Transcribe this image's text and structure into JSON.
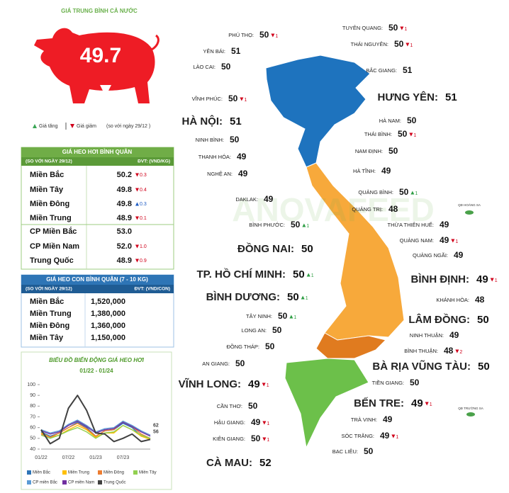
{
  "national": {
    "title": "GIÁ TRUNG BÌNH CẢ NƯỚC",
    "price": 49.7,
    "trend": "down",
    "legend": {
      "up": "Giá tăng",
      "down": "Giá giảm",
      "note": "(so với ngày 29/12 )"
    }
  },
  "live_hog_table": {
    "title": "GIÁ HEO HƠI BÌNH QUÂN",
    "subtitle": "(SO VỚI NGÀY 29/12)",
    "unit": "ĐVT: (VND/KG)",
    "rows": [
      {
        "region": "Miền Bắc",
        "price": "50.2",
        "change": "0.3",
        "trend": "down"
      },
      {
        "region": "Miền Tây",
        "price": "49.8",
        "change": "0.4",
        "trend": "down"
      },
      {
        "region": "Miền Đông",
        "price": "49.8",
        "change": "0.3",
        "trend": "up"
      },
      {
        "region": "Miền Trung",
        "price": "48.9",
        "change": "0.1",
        "trend": "down"
      },
      {
        "region": "CP Miền Bắc",
        "price": "53.0"
      },
      {
        "region": "CP Miền Nam",
        "price": "52.0",
        "change": "1.0",
        "trend": "down"
      },
      {
        "region": "Trung Quốc",
        "price": "48.9",
        "change": "0.9",
        "trend": "down"
      }
    ]
  },
  "piglet_table": {
    "title": "GIÁ HEO CON BÌNH QUÂN (7 - 10 KG)",
    "subtitle": "(SO VỚI NGÀY 29/12)",
    "unit": "ĐVT: (VND/CON)",
    "rows": [
      {
        "region": "Miền Bắc",
        "price": "1,520,000"
      },
      {
        "region": "Miền Trung",
        "price": "1,380,000"
      },
      {
        "region": "Miền Đông",
        "price": "1,360,000"
      },
      {
        "region": "Miền Tây",
        "price": "1,150,000"
      }
    ]
  },
  "chart_data": {
    "type": "line",
    "title": "BIỂU ĐỒ BIẾN ĐỘNG GIÁ HEO HƠI",
    "subtitle": "01/22 - 01/24",
    "categories": [
      "01/22",
      null,
      null,
      "07/22",
      null,
      null,
      "01/23",
      null,
      null,
      "07/23",
      null,
      null,
      null
    ],
    "ylim": [
      40,
      100
    ],
    "yticks": [
      40,
      50,
      60,
      70,
      80,
      90,
      100
    ],
    "series": [
      {
        "name": "Miền Bắc",
        "color": "#2e75b6",
        "values": [
          56,
          52,
          55,
          60,
          65,
          60,
          52,
          57,
          58,
          64,
          60,
          52,
          50
        ]
      },
      {
        "name": "Miền Trung",
        "color": "#ffc000",
        "values": [
          55,
          51,
          53,
          58,
          62,
          58,
          51,
          55,
          55,
          62,
          58,
          52,
          49
        ]
      },
      {
        "name": "Miền Đông",
        "color": "#ed7d31",
        "values": [
          54,
          51,
          55,
          60,
          64,
          59,
          52,
          57,
          58,
          66,
          61,
          54,
          50
        ]
      },
      {
        "name": "Miền Tây",
        "color": "#92d050",
        "values": [
          53,
          50,
          53,
          57,
          60,
          56,
          50,
          55,
          56,
          62,
          58,
          53,
          50
        ]
      },
      {
        "name": "CP miền Bắc",
        "color": "#5b9bd5",
        "values": [
          58,
          55,
          57,
          63,
          67,
          62,
          56,
          59,
          60,
          66,
          62,
          57,
          53
        ]
      },
      {
        "name": "CP miền Nam",
        "color": "#7030a0",
        "values": [
          57,
          54,
          56,
          62,
          66,
          61,
          55,
          58,
          59,
          65,
          61,
          56,
          52
        ]
      },
      {
        "name": "Trung Quốc",
        "color": "#404040",
        "values": [
          58,
          45,
          50,
          78,
          90,
          76,
          55,
          54,
          47,
          50,
          54,
          47,
          49
        ]
      }
    ],
    "end_labels": [
      62,
      56
    ]
  },
  "map": {
    "watermark": "ANOVAFEED",
    "islands": [
      "QĐ HOÀNG SA",
      "QĐ TRƯỜNG SA"
    ],
    "provinces": [
      {
        "name": "PHÚ THỌ:",
        "price": 50,
        "change": 1,
        "trend": "down"
      },
      {
        "name": "TUYÊN QUANG:",
        "price": 50,
        "change": 1,
        "trend": "down"
      },
      {
        "name": "YÊN BÁI:",
        "price": 51
      },
      {
        "name": "THÁI NGUYÊN:",
        "price": 50,
        "change": 1,
        "trend": "down"
      },
      {
        "name": "LÀO CAI:",
        "price": 50
      },
      {
        "name": "BẮC GIANG:",
        "price": 51
      },
      {
        "name": "VĨNH PHÚC:",
        "price": 50,
        "change": 1,
        "trend": "down"
      },
      {
        "name": "HƯNG YÊN:",
        "price": 51
      },
      {
        "name": "HÀ NỘI:",
        "price": 51
      },
      {
        "name": "HÀ NAM:",
        "price": 50
      },
      {
        "name": "THÁI BÌNH:",
        "price": 50,
        "change": 1,
        "trend": "down"
      },
      {
        "name": "NINH BÌNH:",
        "price": 50
      },
      {
        "name": "NAM ĐỊNH:",
        "price": 50
      },
      {
        "name": "THANH HÓA:",
        "price": 49
      },
      {
        "name": "NGHỆ AN:",
        "price": 49
      },
      {
        "name": "HÀ TĨNH:",
        "price": 49
      },
      {
        "name": "QUẢNG BÌNH:",
        "price": 50,
        "change": 1,
        "trend": "up"
      },
      {
        "name": "DAKLAK:",
        "price": 49
      },
      {
        "name": "QUẢNG TRỊ:",
        "price": 48
      },
      {
        "name": "BÌNH PHƯỚC:",
        "price": 50,
        "change": 1,
        "trend": "up"
      },
      {
        "name": "THỪA THIÊN HUẾ:",
        "price": 49
      },
      {
        "name": "QUẢNG NAM:",
        "price": 49,
        "change": 1,
        "trend": "down"
      },
      {
        "name": "ĐỒNG NAI:",
        "price": 50
      },
      {
        "name": "QUẢNG NGÃI:",
        "price": 49
      },
      {
        "name": "TP. HỒ CHÍ MINH:",
        "price": 50,
        "change": 1,
        "trend": "up"
      },
      {
        "name": "BÌNH ĐỊNH:",
        "price": 49,
        "change": 1,
        "trend": "down"
      },
      {
        "name": "BÌNH DƯƠNG:",
        "price": 50,
        "change": 1,
        "trend": "up"
      },
      {
        "name": "KHÁNH HÒA:",
        "price": 48
      },
      {
        "name": "TÂY NINH:",
        "price": 50,
        "change": 1,
        "trend": "up"
      },
      {
        "name": "LÂM ĐỒNG:",
        "price": 50
      },
      {
        "name": "LONG AN:",
        "price": 50
      },
      {
        "name": "NINH THUẬN:",
        "price": 49
      },
      {
        "name": "ĐỒNG THÁP:",
        "price": 50
      },
      {
        "name": "BÌNH THUẬN:",
        "price": 48,
        "change": 2,
        "trend": "down"
      },
      {
        "name": "AN GIANG:",
        "price": 50
      },
      {
        "name": "BÀ RỊA VŨNG TÀU:",
        "price": 50
      },
      {
        "name": "VĨNH LONG:",
        "price": 49,
        "change": 1,
        "trend": "down"
      },
      {
        "name": "TIỀN GIANG:",
        "price": 50
      },
      {
        "name": "CẦN THƠ:",
        "price": 50
      },
      {
        "name": "BẾN TRE:",
        "price": 49,
        "change": 1,
        "trend": "down"
      },
      {
        "name": "HẬU GIANG:",
        "price": 49,
        "change": 1,
        "trend": "down"
      },
      {
        "name": "TRÀ VINH:",
        "price": 49
      },
      {
        "name": "KIÊN GIANG:",
        "price": 50,
        "change": 1,
        "trend": "down"
      },
      {
        "name": "SÓC TRĂNG:",
        "price": 49,
        "change": 1,
        "trend": "down"
      },
      {
        "name": "CÀ MAU:",
        "price": 52
      },
      {
        "name": "BẠC LIÊU:",
        "price": 50
      }
    ]
  }
}
